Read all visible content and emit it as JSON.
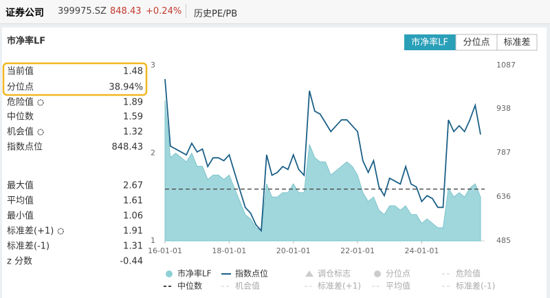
{
  "header": {
    "name": "证券公司",
    "code": "399975.SZ",
    "price": "848.43",
    "change": "+0.24%",
    "nav": "历史PE/PB"
  },
  "panel_title": "市净率LF",
  "tabs": [
    "市净率LF",
    "分位点",
    "标准差"
  ],
  "stats": [
    {
      "label": "当前值",
      "value": 1.48
    },
    {
      "label": "分位点",
      "value": "38.94%"
    },
    {
      "label": "危险值",
      "value": 1.89,
      "gear": true
    },
    {
      "label": "中位数",
      "value": 1.59
    },
    {
      "label": "机会值",
      "value": 1.32,
      "gear": true
    },
    {
      "label": "指数点位",
      "value": 848.43
    },
    {
      "label": "最大值",
      "value": 2.67
    },
    {
      "label": "平均值",
      "value": 1.61
    },
    {
      "label": "最小值",
      "value": 1.06
    },
    {
      "label": "标准差(+1)",
      "value": 1.91,
      "gear": true
    },
    {
      "label": "标准差(-1)",
      "value": 1.31
    },
    {
      "label": "z 分数",
      "value": -0.44
    }
  ],
  "legend_extra": [
    "调仓标志",
    "分位点",
    "危险值",
    "中位数",
    "机会值",
    "标准差(+1)",
    "平均值",
    "标准差(-1)"
  ],
  "chart_data": {
    "type": "line",
    "x": [
      "16-01-01",
      "16-03-01",
      "16-05-01",
      "16-07-01",
      "16-09-01",
      "16-11-01",
      "17-01-01",
      "17-03-01",
      "17-05-01",
      "17-07-01",
      "17-09-01",
      "17-11-01",
      "18-01-01",
      "18-03-01",
      "18-05-01",
      "18-07-01",
      "18-09-01",
      "18-11-01",
      "19-01-01",
      "19-03-01",
      "19-05-01",
      "19-07-01",
      "19-09-01",
      "19-11-01",
      "20-01-01",
      "20-03-01",
      "20-05-01",
      "20-07-01",
      "20-09-01",
      "20-11-01",
      "21-01-01",
      "21-03-01",
      "21-05-01",
      "21-07-01",
      "21-09-01",
      "21-11-01",
      "22-01-01",
      "22-03-01",
      "22-05-01",
      "22-07-01",
      "22-09-01",
      "22-11-01",
      "23-01-01",
      "23-03-01",
      "23-05-01",
      "23-07-01",
      "23-09-01",
      "23-11-01",
      "24-01-01",
      "24-03-01",
      "24-05-01",
      "24-07-01",
      "24-09-01",
      "24-11-01",
      "25-01-01",
      "25-03-01",
      "25-05-01",
      "25-07-01",
      "25-09-01",
      "25-11-01"
    ],
    "xticks": [
      "16-01-01",
      "18-01-01",
      "20-01-01",
      "22-01-01",
      "24-01-01"
    ],
    "series": [
      {
        "name": "市净率LF",
        "color": "#8fd0d6",
        "fill": "area",
        "values": [
          2.6,
          1.95,
          2.0,
          1.95,
          1.9,
          2.0,
          1.85,
          1.85,
          1.7,
          1.75,
          1.75,
          1.7,
          1.75,
          1.6,
          1.45,
          1.3,
          1.25,
          1.15,
          1.12,
          1.65,
          1.5,
          1.5,
          1.55,
          1.55,
          1.65,
          1.55,
          1.55,
          2.1,
          1.95,
          1.9,
          1.9,
          1.75,
          1.8,
          1.85,
          1.9,
          1.85,
          1.75,
          1.55,
          1.45,
          1.5,
          1.35,
          1.3,
          1.4,
          1.4,
          1.35,
          1.4,
          1.3,
          1.3,
          1.2,
          1.25,
          1.2,
          1.15,
          1.15,
          1.6,
          1.5,
          1.55,
          1.5,
          1.6,
          1.65,
          1.5
        ]
      },
      {
        "name": "指数点位",
        "color": "#1a5f86",
        "axis": "y2",
        "values": [
          1040,
          810,
          800,
          790,
          780,
          820,
          790,
          800,
          740,
          770,
          770,
          760,
          780,
          720,
          660,
          600,
          580,
          540,
          520,
          780,
          710,
          720,
          740,
          730,
          780,
          730,
          710,
          1000,
          930,
          920,
          890,
          860,
          880,
          900,
          900,
          880,
          860,
          760,
          720,
          760,
          670,
          640,
          700,
          690,
          680,
          740,
          680,
          670,
          620,
          640,
          630,
          600,
          600,
          900,
          860,
          880,
          860,
          900,
          950,
          850
        ]
      }
    ],
    "ylim": [
      1,
      3
    ],
    "yticks": [
      1,
      2,
      3
    ],
    "y2lim": [
      485,
      1087
    ],
    "y2ticks": [
      485,
      636,
      787,
      938,
      1087
    ]
  }
}
